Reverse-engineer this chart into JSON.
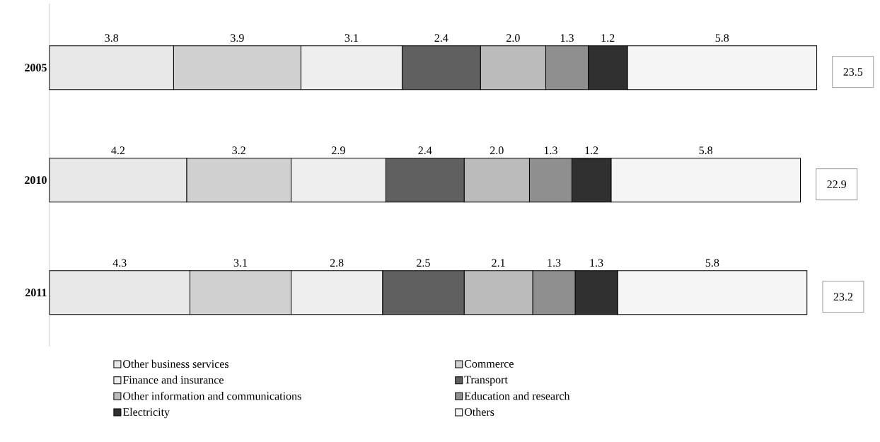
{
  "chart_data": {
    "type": "bar",
    "orientation": "horizontal",
    "stacked": true,
    "legend": "bottom",
    "categories": [
      "2005",
      "2010",
      "2011"
    ],
    "series": [
      {
        "name": "Other business services",
        "color": "#e8e8e8",
        "values": [
          3.8,
          4.2,
          4.3
        ],
        "value_labels": [
          "3.8",
          "4.2",
          "4.3"
        ]
      },
      {
        "name": "Commerce",
        "color": "#d0d0d0",
        "values": [
          3.9,
          3.2,
          3.1
        ],
        "value_labels": [
          "3.9",
          "3.2",
          "3.1"
        ]
      },
      {
        "name": "Finance and insurance",
        "color": "#eeeeee",
        "values": [
          3.1,
          2.9,
          2.8
        ],
        "value_labels": [
          "3.1",
          "2.9",
          "2.8"
        ]
      },
      {
        "name": "Transport",
        "color": "#606060",
        "values": [
          2.4,
          2.4,
          2.5
        ],
        "value_labels": [
          "2.4",
          "2.4",
          "2.5"
        ]
      },
      {
        "name": "Other information and communications",
        "color": "#bbbbbb",
        "values": [
          2.0,
          2.0,
          2.1
        ],
        "value_labels": [
          "2.0",
          "2.0",
          "2.1"
        ]
      },
      {
        "name": "Education and research",
        "color": "#8f8f8f",
        "values": [
          1.3,
          1.3,
          1.3
        ],
        "value_labels": [
          "1.3",
          "1.3",
          "1.3"
        ]
      },
      {
        "name": "Electricity",
        "color": "#303030",
        "values": [
          1.2,
          1.2,
          1.3
        ],
        "value_labels": [
          "1.2",
          "1.2",
          "1.3"
        ]
      },
      {
        "name": "Others",
        "color": "#f5f5f5",
        "values": [
          5.8,
          5.8,
          5.8
        ],
        "value_labels": [
          "5.8",
          "5.8",
          "5.8"
        ]
      }
    ],
    "totals": [
      "23.5",
      "22.9",
      "23.2"
    ]
  }
}
